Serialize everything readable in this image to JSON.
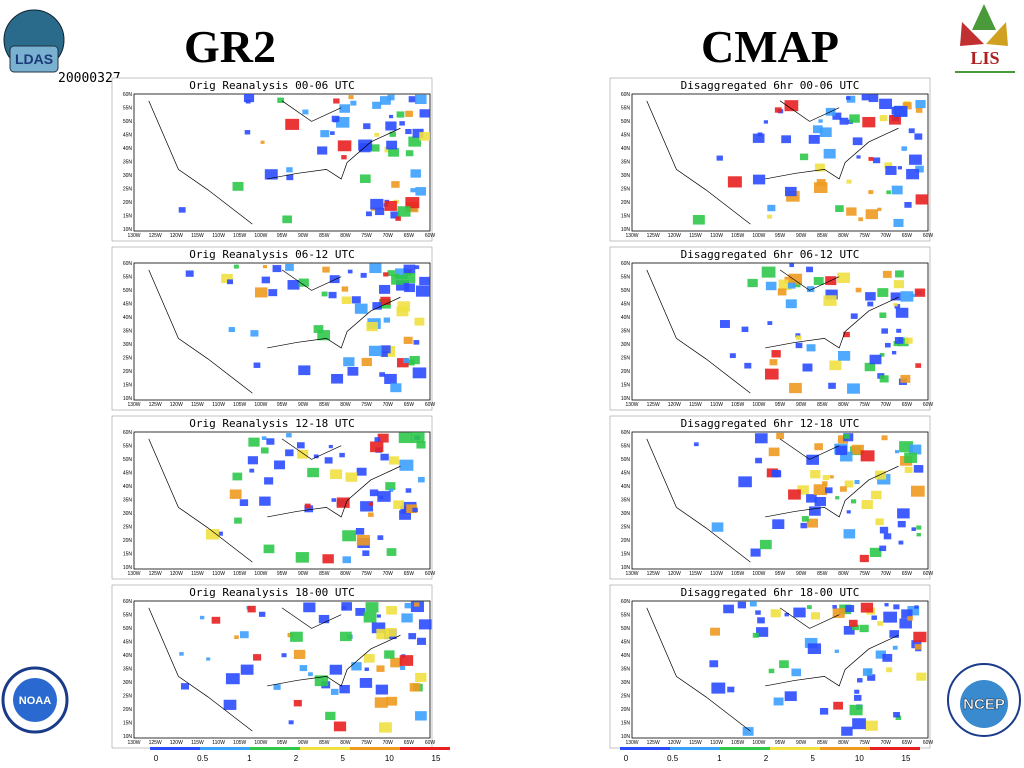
{
  "header": {
    "left_title": "GR2",
    "right_title": "CMAP",
    "date": "20000327"
  },
  "logos": {
    "ldas": "LDAS",
    "lis": "LIS",
    "noaa": "NOAA",
    "ncep": "NCEP"
  },
  "panels": [
    {
      "title": "Orig Reanalysis 00-06 UTC"
    },
    {
      "title": "Orig Reanalysis 06-12 UTC"
    },
    {
      "title": "Orig Reanalysis 12-18 UTC"
    },
    {
      "title": "Orig Reanalysis 18-00 UTC"
    },
    {
      "title": "Disaggregated 6hr 00-06 UTC"
    },
    {
      "title": "Disaggregated 6hr 06-12 UTC"
    },
    {
      "title": "Disaggregated 6hr 12-18 UTC"
    },
    {
      "title": "Disaggregated 6hr 18-00 UTC"
    }
  ],
  "lat_labels": [
    "60N",
    "55N",
    "50N",
    "45N",
    "40N",
    "35N",
    "30N",
    "25N",
    "20N",
    "15N",
    "10N"
  ],
  "lon_labels": [
    "130W",
    "125W",
    "120W",
    "115W",
    "110W",
    "105W",
    "100W",
    "95W",
    "90W",
    "85W",
    "80W",
    "75W",
    "70W",
    "65W",
    "60W"
  ],
  "colorbar": {
    "labels": [
      "0",
      "0.5",
      "1",
      "2",
      "5",
      "10",
      "15"
    ],
    "colors": [
      "#2b4bff",
      "#3ca0ff",
      "#2ec84a",
      "#f0e040",
      "#f09a20",
      "#e82020"
    ]
  }
}
